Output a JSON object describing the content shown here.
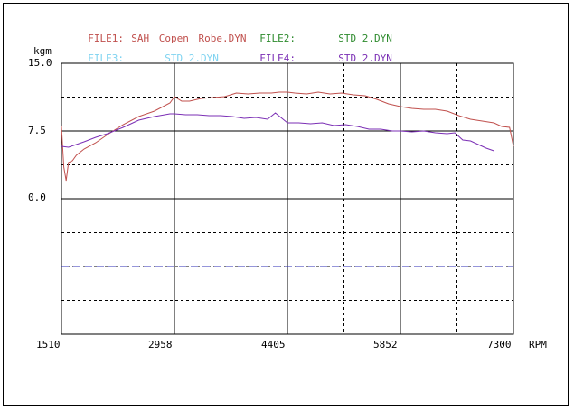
{
  "legend": {
    "file1_label": "FILE1:",
    "file1_name": "SAH Copen Robe.DYN",
    "file1_color": "#c0504d",
    "file2_label": "FILE2:",
    "file2_name": "STD 2.DYN",
    "file2_color": "#2e8b2e",
    "file3_label": "FILE3:",
    "file3_name": "STD 2.DYN",
    "file3_color": "#7fd3f0",
    "file4_label": "FILE4:",
    "file4_name": "STD 2.DYN",
    "file4_color": "#7b2fb5"
  },
  "chart_data": {
    "type": "line",
    "ylabel": "kgm",
    "xlabel": "RPM",
    "y_ticks": [
      "15.0",
      "7.5",
      "0.0"
    ],
    "x_ticks": [
      "1510",
      "2958",
      "4405",
      "5852",
      "7300"
    ],
    "xlim": [
      1510,
      7300
    ],
    "ylim": [
      -15,
      15
    ],
    "grid": true,
    "series": [
      {
        "name": "SAH Copen Robe.DYN",
        "color": "#c0504d",
        "x": [
          1510,
          1540,
          1570,
          1600,
          1650,
          1700,
          1800,
          1950,
          2100,
          2300,
          2500,
          2700,
          2900,
          2958,
          3050,
          3150,
          3300,
          3450,
          3600,
          3750,
          3900,
          4050,
          4200,
          4300,
          4405,
          4500,
          4650,
          4800,
          4950,
          5100,
          5250,
          5400,
          5550,
          5700,
          5852,
          6000,
          6150,
          6300,
          6450,
          6600,
          6750,
          6900,
          7050,
          7150,
          7250,
          7300
        ],
        "y": [
          8.0,
          3.5,
          2.0,
          4.0,
          4.2,
          4.8,
          5.5,
          6.2,
          7.1,
          8.2,
          9.1,
          9.7,
          10.6,
          11.3,
          10.8,
          10.8,
          11.1,
          11.2,
          11.3,
          11.7,
          11.6,
          11.7,
          11.7,
          11.8,
          11.8,
          11.7,
          11.6,
          11.8,
          11.6,
          11.7,
          11.5,
          11.4,
          11.0,
          10.5,
          10.2,
          10.0,
          9.9,
          9.9,
          9.7,
          9.2,
          8.8,
          8.6,
          8.4,
          8.0,
          7.9,
          5.8
        ]
      },
      {
        "name": "STD 2.DYN",
        "color": "#7b2fb5",
        "x": [
          1510,
          1600,
          1700,
          1800,
          1950,
          2100,
          2300,
          2500,
          2700,
          2900,
          2958,
          3100,
          3250,
          3400,
          3550,
          3700,
          3850,
          4000,
          4150,
          4250,
          4405,
          4550,
          4700,
          4850,
          5000,
          5150,
          5300,
          5450,
          5600,
          5750,
          5852,
          6000,
          6150,
          6300,
          6450,
          6550,
          6650,
          6750,
          6850,
          6950,
          7050
        ],
        "y": [
          5.8,
          5.7,
          6.0,
          6.3,
          6.8,
          7.2,
          7.9,
          8.7,
          9.1,
          9.4,
          9.4,
          9.3,
          9.3,
          9.2,
          9.2,
          9.1,
          8.9,
          9.0,
          8.8,
          9.5,
          8.4,
          8.4,
          8.3,
          8.4,
          8.1,
          8.2,
          8.0,
          7.7,
          7.7,
          7.5,
          7.5,
          7.4,
          7.5,
          7.3,
          7.2,
          7.3,
          6.5,
          6.4,
          6.0,
          5.6,
          5.3
        ]
      }
    ],
    "reference_line": {
      "y": -7.5,
      "color": "#2b2bb5",
      "style": "dashed"
    }
  }
}
